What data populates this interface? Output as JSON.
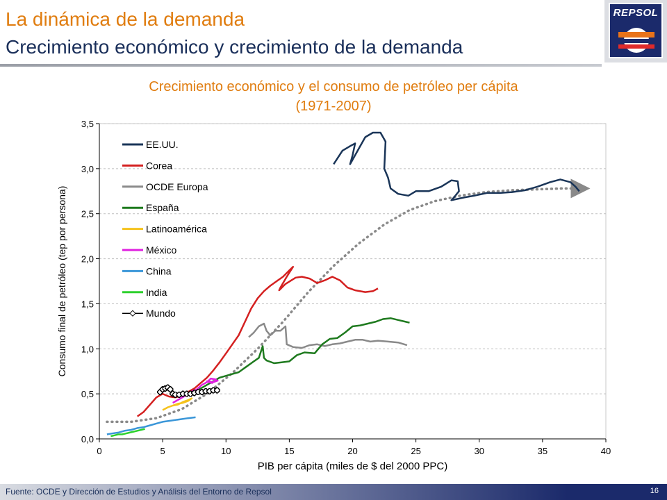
{
  "header": {
    "title": "La dinámica de la demanda",
    "subtitle": "Crecimiento económico y crecimiento de la demanda",
    "logo_text": "REPSOL"
  },
  "footer": {
    "source": "Fuente: OCDE y Dirección de Estudios y Análisis del Entorno de Repsol",
    "page_number": "16"
  },
  "chart_data": {
    "type": "line",
    "title": "Crecimiento económico y el consumo de petróleo per cápita",
    "subtitle": "(1971-2007)",
    "xlabel": "PIB per cápita (miles de $ del 2000 PPC)",
    "ylabel": "Consumo final de petróleo (tep por persona)",
    "xlim": [
      0,
      40
    ],
    "ylim": [
      0,
      3.5
    ],
    "x_ticks": [
      "0",
      "5",
      "10",
      "15",
      "20",
      "25",
      "30",
      "35",
      "40"
    ],
    "y_ticks": [
      "0,0",
      "0,5",
      "1,0",
      "1,5",
      "2,0",
      "2,5",
      "3,0",
      "3,5"
    ],
    "grid": "horizontal dashed",
    "legend_position": "top-left",
    "series": [
      {
        "name": "EE.UU.",
        "color": "#1a3558",
        "points": [
          [
            18.5,
            3.05
          ],
          [
            19.2,
            3.2
          ],
          [
            19.8,
            3.25
          ],
          [
            20.2,
            3.28
          ],
          [
            20.0,
            3.15
          ],
          [
            19.8,
            3.05
          ],
          [
            20.4,
            3.2
          ],
          [
            21.0,
            3.35
          ],
          [
            21.6,
            3.4
          ],
          [
            22.2,
            3.4
          ],
          [
            22.6,
            3.3
          ],
          [
            22.5,
            3.0
          ],
          [
            22.8,
            2.9
          ],
          [
            23.0,
            2.78
          ],
          [
            23.6,
            2.72
          ],
          [
            24.4,
            2.7
          ],
          [
            25.0,
            2.75
          ],
          [
            26.0,
            2.75
          ],
          [
            27.0,
            2.8
          ],
          [
            27.8,
            2.87
          ],
          [
            28.3,
            2.86
          ],
          [
            28.4,
            2.75
          ],
          [
            28.0,
            2.68
          ],
          [
            27.8,
            2.65
          ],
          [
            28.8,
            2.68
          ],
          [
            29.6,
            2.7
          ],
          [
            30.6,
            2.73
          ],
          [
            31.6,
            2.73
          ],
          [
            32.6,
            2.74
          ],
          [
            33.6,
            2.76
          ],
          [
            34.6,
            2.8
          ],
          [
            35.6,
            2.85
          ],
          [
            36.4,
            2.88
          ],
          [
            37.2,
            2.85
          ],
          [
            37.6,
            2.8
          ],
          [
            37.9,
            2.75
          ]
        ]
      },
      {
        "name": "Corea",
        "color": "#d42020",
        "points": [
          [
            3.0,
            0.25
          ],
          [
            3.5,
            0.3
          ],
          [
            4.0,
            0.38
          ],
          [
            4.5,
            0.46
          ],
          [
            5.0,
            0.5
          ],
          [
            5.5,
            0.47
          ],
          [
            6.0,
            0.46
          ],
          [
            6.5,
            0.48
          ],
          [
            7.0,
            0.52
          ],
          [
            7.5,
            0.56
          ],
          [
            8.0,
            0.62
          ],
          [
            8.5,
            0.68
          ],
          [
            9.0,
            0.76
          ],
          [
            9.5,
            0.85
          ],
          [
            10.0,
            0.95
          ],
          [
            10.5,
            1.05
          ],
          [
            11.0,
            1.15
          ],
          [
            11.5,
            1.3
          ],
          [
            12.0,
            1.45
          ],
          [
            12.5,
            1.56
          ],
          [
            13.0,
            1.64
          ],
          [
            13.5,
            1.7
          ],
          [
            14.0,
            1.75
          ],
          [
            14.5,
            1.8
          ],
          [
            15.0,
            1.87
          ],
          [
            15.3,
            1.91
          ],
          [
            14.8,
            1.8
          ],
          [
            14.3,
            1.68
          ],
          [
            14.2,
            1.65
          ],
          [
            14.7,
            1.72
          ],
          [
            15.5,
            1.79
          ],
          [
            16.0,
            1.8
          ],
          [
            16.6,
            1.78
          ],
          [
            17.2,
            1.73
          ],
          [
            17.8,
            1.76
          ],
          [
            18.4,
            1.8
          ],
          [
            19.0,
            1.76
          ],
          [
            19.6,
            1.68
          ],
          [
            20.2,
            1.65
          ],
          [
            21.0,
            1.63
          ],
          [
            21.6,
            1.64
          ],
          [
            22.0,
            1.67
          ]
        ]
      },
      {
        "name": "OCDE Europa",
        "color": "#8a8a8a",
        "points": [
          [
            11.8,
            1.13
          ],
          [
            12.2,
            1.18
          ],
          [
            12.6,
            1.25
          ],
          [
            13.0,
            1.28
          ],
          [
            13.2,
            1.2
          ],
          [
            13.5,
            1.15
          ],
          [
            13.9,
            1.2
          ],
          [
            14.3,
            1.2
          ],
          [
            14.7,
            1.25
          ],
          [
            14.8,
            1.05
          ],
          [
            15.3,
            1.02
          ],
          [
            16.0,
            1.01
          ],
          [
            16.6,
            1.04
          ],
          [
            17.2,
            1.05
          ],
          [
            17.8,
            1.03
          ],
          [
            18.4,
            1.05
          ],
          [
            19.0,
            1.06
          ],
          [
            19.6,
            1.08
          ],
          [
            20.2,
            1.1
          ],
          [
            20.8,
            1.1
          ],
          [
            21.4,
            1.08
          ],
          [
            22.0,
            1.09
          ],
          [
            22.8,
            1.08
          ],
          [
            23.6,
            1.07
          ],
          [
            24.3,
            1.04
          ]
        ]
      },
      {
        "name": "España",
        "color": "#1e7a1e",
        "points": [
          [
            7.5,
            0.54
          ],
          [
            8.0,
            0.56
          ],
          [
            8.5,
            0.6
          ],
          [
            9.0,
            0.64
          ],
          [
            9.5,
            0.68
          ],
          [
            10.0,
            0.7
          ],
          [
            10.5,
            0.72
          ],
          [
            11.0,
            0.74
          ],
          [
            11.6,
            0.8
          ],
          [
            12.2,
            0.86
          ],
          [
            12.6,
            0.9
          ],
          [
            12.9,
            1.03
          ],
          [
            13.0,
            0.9
          ],
          [
            13.2,
            0.87
          ],
          [
            13.8,
            0.84
          ],
          [
            14.4,
            0.85
          ],
          [
            15.0,
            0.86
          ],
          [
            15.6,
            0.93
          ],
          [
            16.2,
            0.96
          ],
          [
            17.0,
            0.95
          ],
          [
            17.6,
            1.05
          ],
          [
            18.2,
            1.11
          ],
          [
            18.8,
            1.12
          ],
          [
            19.4,
            1.18
          ],
          [
            20.0,
            1.25
          ],
          [
            20.6,
            1.26
          ],
          [
            21.2,
            1.28
          ],
          [
            21.8,
            1.3
          ],
          [
            22.4,
            1.33
          ],
          [
            23.0,
            1.34
          ],
          [
            23.6,
            1.32
          ],
          [
            24.2,
            1.3
          ],
          [
            24.5,
            1.29
          ]
        ]
      },
      {
        "name": "Latinoamérica",
        "color": "#f5c21b",
        "points": [
          [
            5.0,
            0.32
          ],
          [
            5.4,
            0.35
          ],
          [
            5.8,
            0.37
          ],
          [
            6.2,
            0.39
          ],
          [
            6.6,
            0.4
          ],
          [
            7.0,
            0.42
          ],
          [
            7.3,
            0.45
          ],
          [
            7.0,
            0.43
          ],
          [
            6.6,
            0.41
          ],
          [
            6.2,
            0.38
          ],
          [
            5.8,
            0.37
          ]
        ]
      },
      {
        "name": "México",
        "color": "#e020e0",
        "points": [
          [
            5.8,
            0.4
          ],
          [
            6.3,
            0.44
          ],
          [
            6.8,
            0.48
          ],
          [
            7.2,
            0.52
          ],
          [
            7.7,
            0.55
          ],
          [
            8.1,
            0.6
          ],
          [
            8.5,
            0.63
          ],
          [
            8.8,
            0.67
          ],
          [
            9.2,
            0.66
          ],
          [
            8.9,
            0.62
          ],
          [
            8.5,
            0.64
          ],
          [
            9.0,
            0.63
          ],
          [
            9.4,
            0.65
          ]
        ]
      },
      {
        "name": "China",
        "color": "#3a96d8",
        "points": [
          [
            0.6,
            0.05
          ],
          [
            1.0,
            0.06
          ],
          [
            1.5,
            0.07
          ],
          [
            2.0,
            0.09
          ],
          [
            2.5,
            0.1
          ],
          [
            3.0,
            0.12
          ],
          [
            3.5,
            0.13
          ],
          [
            4.0,
            0.15
          ],
          [
            4.5,
            0.17
          ],
          [
            5.0,
            0.19
          ],
          [
            5.5,
            0.2
          ],
          [
            6.0,
            0.21
          ],
          [
            6.5,
            0.22
          ],
          [
            7.0,
            0.23
          ],
          [
            7.6,
            0.24
          ]
        ]
      },
      {
        "name": "India",
        "color": "#2ed12e",
        "points": [
          [
            0.9,
            0.03
          ],
          [
            1.2,
            0.04
          ],
          [
            1.5,
            0.05
          ],
          [
            1.8,
            0.05
          ],
          [
            2.1,
            0.06
          ],
          [
            2.4,
            0.07
          ],
          [
            2.7,
            0.08
          ],
          [
            3.0,
            0.09
          ],
          [
            3.3,
            0.1
          ],
          [
            3.6,
            0.11
          ]
        ]
      },
      {
        "name": "Mundo",
        "color": "#000000",
        "points": [
          [
            4.8,
            0.52
          ],
          [
            5.0,
            0.55
          ],
          [
            5.2,
            0.56
          ],
          [
            5.4,
            0.57
          ],
          [
            5.6,
            0.55
          ],
          [
            5.8,
            0.5
          ],
          [
            6.0,
            0.49
          ],
          [
            6.3,
            0.49
          ],
          [
            6.6,
            0.5
          ],
          [
            6.9,
            0.5
          ],
          [
            7.2,
            0.5
          ],
          [
            7.5,
            0.51
          ],
          [
            7.8,
            0.52
          ],
          [
            8.1,
            0.52
          ],
          [
            8.4,
            0.53
          ],
          [
            8.7,
            0.53
          ],
          [
            9.0,
            0.54
          ],
          [
            9.3,
            0.54
          ]
        ]
      }
    ],
    "trend": {
      "color": "#8a8a8a",
      "points": [
        [
          0.6,
          0.19
        ],
        [
          2.5,
          0.19
        ],
        [
          4.5,
          0.23
        ],
        [
          6.5,
          0.33
        ],
        [
          8.5,
          0.5
        ],
        [
          10.5,
          0.73
        ],
        [
          12.5,
          1.0
        ],
        [
          14.5,
          1.3
        ],
        [
          16.5,
          1.63
        ],
        [
          18.5,
          1.92
        ],
        [
          20.5,
          2.17
        ],
        [
          22.5,
          2.38
        ],
        [
          24.5,
          2.54
        ],
        [
          26.5,
          2.64
        ],
        [
          28.5,
          2.7
        ],
        [
          30.5,
          2.74
        ],
        [
          32.5,
          2.76
        ],
        [
          34.5,
          2.77
        ],
        [
          36.5,
          2.78
        ],
        [
          38.0,
          2.78
        ]
      ]
    }
  }
}
